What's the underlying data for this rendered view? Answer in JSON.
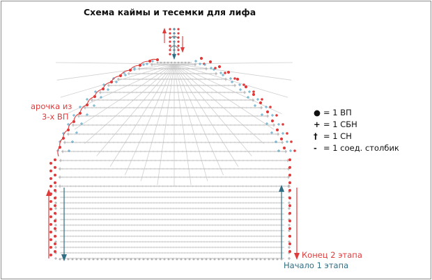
{
  "title": "Схема каймы и тесемки для лифа",
  "labels": {
    "arch_line1": "арочка из",
    "arch_line2": "3-х ВП",
    "end_stage2": "Конец 2 этапа",
    "start_stage1": "Начало 1 этапа"
  },
  "legend": [
    {
      "symbol": "●",
      "text": "= 1 ВП"
    },
    {
      "symbol": "+",
      "text": "= 1 СБН"
    },
    {
      "symbol": "†",
      "text": "= 1 СН"
    },
    {
      "symbol": "-",
      "text": "= 1 соед. столбик"
    }
  ],
  "colors": {
    "red": "#e03a3a",
    "teal": "#2f6e84",
    "light_blue": "#5aa9c9",
    "gray": "#a9a9a9",
    "text": "#111111"
  }
}
